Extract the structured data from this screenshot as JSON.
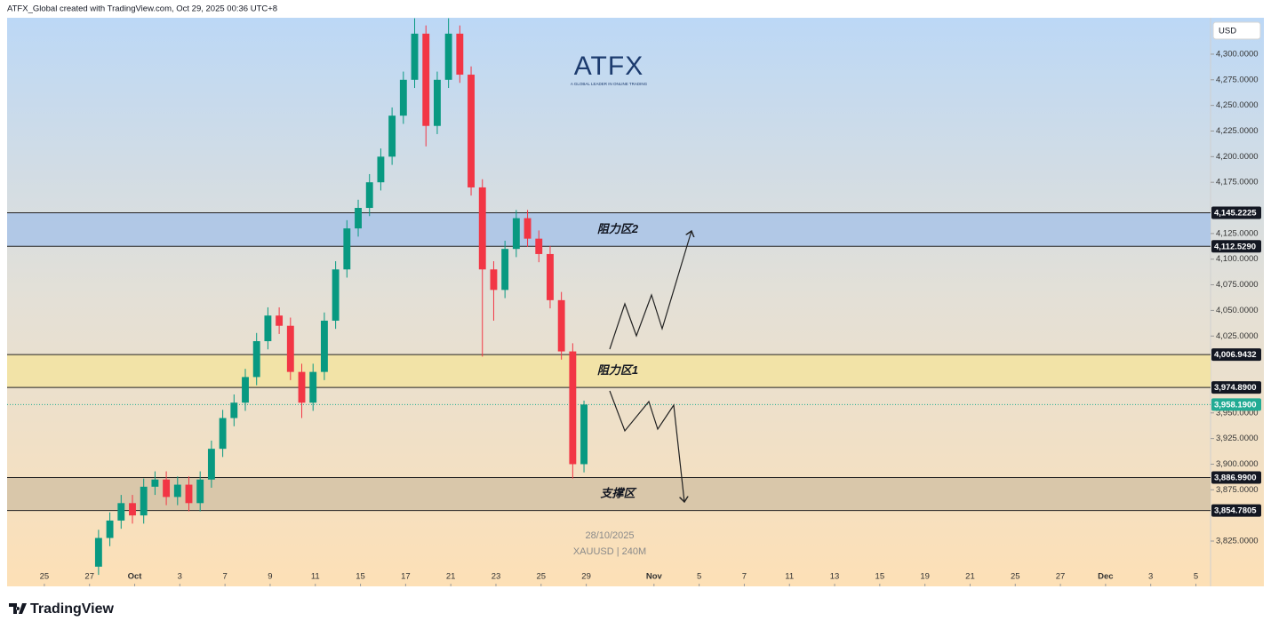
{
  "header": "ATFX_Global created with TradingView.com, Oct 29, 2025 00:36 UTC+8",
  "currency": "USD",
  "logo": {
    "name": "ATFX",
    "tagline": "A GLOBAL LEADER IN ONLINE TRADING"
  },
  "footer": "TradingView",
  "chart_data": {
    "type": "candlestick",
    "watermark": {
      "date": "28/10/2025",
      "symbol": "XAUUSD | 240M"
    },
    "up_color": "#089981",
    "down_color": "#f23645",
    "x": [
      2.4,
      2.9,
      3.4,
      3.9,
      4.4,
      4.9,
      5.4,
      5.9,
      6.4,
      6.9,
      7.4,
      7.9,
      8.4,
      8.9,
      9.4,
      9.9,
      10.4,
      10.9,
      11.4,
      11.9,
      12.4,
      12.9,
      13.4,
      13.9,
      14.4,
      14.9,
      15.4,
      15.9,
      16.4,
      16.9,
      17.4,
      17.9,
      18.4,
      18.9,
      19.4,
      19.9,
      20.4,
      20.9,
      21.4,
      21.9,
      22.4,
      22.9,
      23.4,
      23.9
    ],
    "open": [
      3800,
      3828,
      3845,
      3862,
      3850,
      3878,
      3885,
      3868,
      3880,
      3862,
      3885,
      3915,
      3945,
      3960,
      3985,
      4020,
      4045,
      4035,
      3990,
      3960,
      3990,
      4040,
      4090,
      4130,
      4150,
      4175,
      4200,
      4240,
      4275,
      4320,
      4230,
      4275,
      4320,
      4280,
      4170,
      4090,
      4070,
      4110,
      4140,
      4120,
      4105,
      4060,
      4010,
      3900
    ],
    "high": [
      3836,
      3853,
      3870,
      3870,
      3886,
      3893,
      3893,
      3888,
      3888,
      3893,
      3923,
      3953,
      3968,
      3993,
      4028,
      4053,
      4053,
      4043,
      3998,
      3998,
      4048,
      4098,
      4138,
      4158,
      4183,
      4208,
      4248,
      4283,
      4335,
      4328,
      4283,
      4335,
      4328,
      4288,
      4178,
      4098,
      4118,
      4148,
      4148,
      4128,
      4113,
      4068,
      4018,
      3962
    ],
    "low": [
      3792,
      3820,
      3837,
      3842,
      3842,
      3870,
      3860,
      3860,
      3854,
      3854,
      3877,
      3907,
      3937,
      3952,
      3977,
      4012,
      4027,
      3982,
      3945,
      3952,
      3982,
      4032,
      4082,
      4122,
      4142,
      4167,
      4192,
      4232,
      4267,
      4210,
      4222,
      4267,
      4272,
      4162,
      4005,
      4040,
      4062,
      4102,
      4112,
      4097,
      4052,
      4002,
      3886,
      3892
    ],
    "close": [
      3828,
      3845,
      3862,
      3850,
      3878,
      3885,
      3868,
      3880,
      3862,
      3885,
      3915,
      3945,
      3960,
      3985,
      4020,
      4045,
      4035,
      3990,
      3960,
      3990,
      4040,
      4090,
      4130,
      4150,
      4175,
      4200,
      4240,
      4275,
      4320,
      4230,
      4275,
      4320,
      4280,
      4170,
      4090,
      4070,
      4110,
      4140,
      4120,
      4105,
      4060,
      4010,
      3900,
      3958.19
    ],
    "xlim": [
      -1.65,
      51.65
    ],
    "xticks": [
      {
        "value": 0,
        "label": "25"
      },
      {
        "value": 2,
        "label": "27"
      },
      {
        "value": 4,
        "label": "Oct"
      },
      {
        "value": 6,
        "label": "3"
      },
      {
        "value": 8,
        "label": "7"
      },
      {
        "value": 10,
        "label": "9"
      },
      {
        "value": 12,
        "label": "11"
      },
      {
        "value": 14,
        "label": "15"
      },
      {
        "value": 16,
        "label": "17"
      },
      {
        "value": 18,
        "label": "21"
      },
      {
        "value": 20,
        "label": "23"
      },
      {
        "value": 22,
        "label": "25"
      },
      {
        "value": 24,
        "label": "29"
      },
      {
        "value": 27,
        "label": "Nov"
      },
      {
        "value": 29,
        "label": "5"
      },
      {
        "value": 31,
        "label": "7"
      },
      {
        "value": 33,
        "label": "11"
      },
      {
        "value": 35,
        "label": "13"
      },
      {
        "value": 37,
        "label": "15"
      },
      {
        "value": 39,
        "label": "19"
      },
      {
        "value": 41,
        "label": "21"
      },
      {
        "value": 43,
        "label": "25"
      },
      {
        "value": 45,
        "label": "27"
      },
      {
        "value": 47,
        "label": "Dec"
      },
      {
        "value": 49,
        "label": "3"
      },
      {
        "value": 51,
        "label": "5"
      }
    ],
    "ylim": [
      3780.8,
      4335.5
    ],
    "yticks": [
      {
        "value": 3825,
        "label": "3,825.0000"
      },
      {
        "value": 3875,
        "label": "3,875.0000"
      },
      {
        "value": 3900,
        "label": "3,900.0000"
      },
      {
        "value": 3925,
        "label": "3,925.0000"
      },
      {
        "value": 3950,
        "label": "3,950.0000"
      },
      {
        "value": 4025,
        "label": "4,025.0000"
      },
      {
        "value": 4050,
        "label": "4,050.0000"
      },
      {
        "value": 4075,
        "label": "4,075.0000"
      },
      {
        "value": 4100,
        "label": "4,100.0000"
      },
      {
        "value": 4125,
        "label": "4,125.0000"
      },
      {
        "value": 4175,
        "label": "4,175.0000"
      },
      {
        "value": 4200,
        "label": "4,200.0000"
      },
      {
        "value": 4225,
        "label": "4,225.0000"
      },
      {
        "value": 4250,
        "label": "4,250.0000"
      },
      {
        "value": 4275,
        "label": "4,275.0000"
      },
      {
        "value": 4300,
        "label": "4,300.0000"
      }
    ],
    "zones": [
      {
        "name": "阻力区2",
        "color": "#a9c4e8",
        "range": [
          {
            "value": 4112.529,
            "label": "4,112.5290"
          },
          {
            "value": 4145.2225,
            "label": "4,145.2225"
          }
        ]
      },
      {
        "name": "阻力区1",
        "color": "#f3e3a0",
        "range": [
          {
            "value": 3974.89,
            "label": "3,974.8900"
          },
          {
            "value": 4006.9432,
            "label": "4,006.9432"
          }
        ]
      },
      {
        "name": "支撑区",
        "color": "#d4c2a6",
        "range": [
          {
            "value": 3854.7805,
            "label": "3,854.7805"
          },
          {
            "value": 3886.99,
            "label": "3,886.9900"
          }
        ]
      }
    ],
    "last_price": {
      "value": 3958.19,
      "label": "3,958.1900",
      "color": "#22ab94"
    }
  }
}
